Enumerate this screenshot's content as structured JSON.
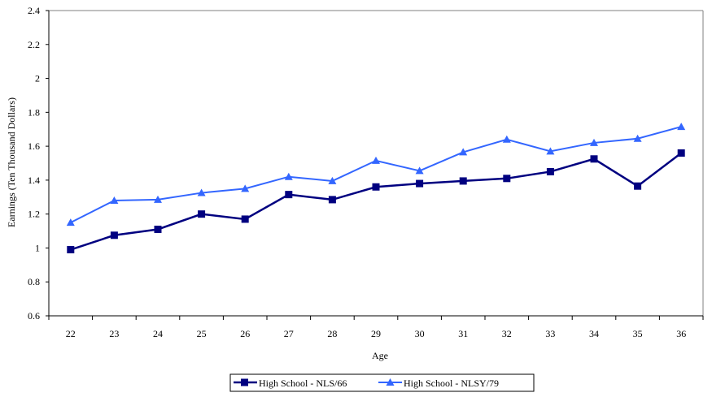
{
  "chart_data": {
    "type": "line",
    "title": "",
    "xlabel": "Age",
    "ylabel": "Earnings (Ten Thousand Dollars)",
    "ylim": [
      0.6,
      2.4
    ],
    "yticks": [
      "0.6",
      "0.8",
      "1",
      "1.2",
      "1.4",
      "1.6",
      "1.8",
      "2",
      "2.2",
      "2.4"
    ],
    "categories": [
      "22",
      "23",
      "24",
      "25",
      "26",
      "27",
      "28",
      "29",
      "30",
      "31",
      "32",
      "33",
      "34",
      "35",
      "36"
    ],
    "grid": false,
    "legend_position": "bottom",
    "series": [
      {
        "name": "High School - NLS/66",
        "color": "#000080",
        "marker": "square",
        "values": [
          0.99,
          1.075,
          1.11,
          1.2,
          1.17,
          1.315,
          1.285,
          1.36,
          1.38,
          1.395,
          1.41,
          1.45,
          1.525,
          1.365,
          1.56
        ]
      },
      {
        "name": "High School - NLSY/79",
        "color": "#3366ff",
        "marker": "triangle",
        "values": [
          1.15,
          1.28,
          1.285,
          1.325,
          1.35,
          1.42,
          1.395,
          1.515,
          1.455,
          1.565,
          1.64,
          1.57,
          1.62,
          1.645,
          1.715
        ]
      }
    ]
  }
}
